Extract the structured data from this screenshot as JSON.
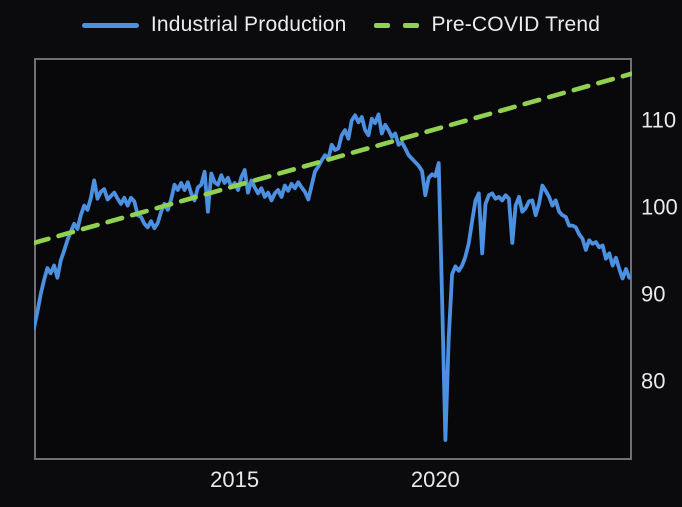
{
  "legend": {
    "industrial_label": "Industrial Production",
    "trend_label": "Pre-COVID Trend"
  },
  "colors": {
    "background": "#0b0b0e",
    "plot_background": "#08080b",
    "plot_border": "#6f6f75",
    "industrial_line": "#4c90e2",
    "trend_line": "#90d152",
    "text": "#e9e9eb"
  },
  "chart_data": {
    "type": "line",
    "title": "",
    "xlabel": "",
    "ylabel": "",
    "grid": false,
    "legend_position": "top-center",
    "xlim": [
      2010.0,
      2024.9
    ],
    "ylim": [
      71.0,
      117.3
    ],
    "xticks": [
      {
        "value": 2015,
        "label": "2015"
      },
      {
        "value": 2020,
        "label": "2020"
      }
    ],
    "yticks": [
      {
        "value": 110,
        "label": "110"
      },
      {
        "value": 100,
        "label": "100"
      },
      {
        "value": 90,
        "label": "90"
      },
      {
        "value": 80,
        "label": "80"
      }
    ],
    "series": [
      {
        "name": "Industrial Production",
        "color": "#4c90e2",
        "style": "solid",
        "line_width": 3.8,
        "x_start": 2010.0,
        "x_step_per_year": 12,
        "values": [
          86.2,
          88.0,
          90.1,
          91.7,
          93.1,
          92.5,
          93.4,
          92.0,
          94.0,
          95.1,
          96.3,
          97.3,
          98.2,
          97.6,
          99.2,
          100.3,
          99.8,
          101.2,
          103.2,
          101.1,
          101.9,
          102.2,
          101.0,
          101.4,
          101.8,
          101.1,
          100.5,
          101.2,
          100.3,
          101.2,
          100.8,
          99.2,
          99.0,
          98.2,
          97.8,
          98.5,
          97.7,
          98.3,
          99.6,
          100.5,
          99.8,
          101.0,
          102.7,
          102.1,
          102.9,
          102.1,
          103.0,
          101.7,
          100.9,
          102.4,
          102.7,
          104.2,
          99.6,
          104.0,
          103.0,
          102.7,
          103.8,
          102.9,
          103.5,
          102.4,
          102.9,
          102.1,
          103.6,
          104.4,
          101.8,
          103.2,
          102.4,
          101.7,
          102.3,
          101.3,
          101.8,
          100.9,
          101.7,
          102.1,
          101.3,
          102.6,
          102.0,
          102.8,
          102.3,
          103.0,
          102.4,
          101.9,
          101.0,
          102.6,
          104.2,
          104.8,
          105.5,
          106.1,
          105.7,
          107.3,
          106.7,
          106.9,
          108.4,
          109.0,
          108.0,
          110.1,
          110.7,
          109.9,
          110.5,
          109.0,
          108.4,
          110.3,
          109.8,
          110.8,
          108.6,
          109.6,
          109.0,
          108.2,
          108.6,
          107.3,
          107.6,
          106.9,
          106.1,
          105.7,
          105.3,
          104.9,
          104.3,
          101.5,
          103.5,
          103.9,
          103.7,
          105.2,
          90.0,
          73.3,
          85.0,
          92.4,
          93.3,
          92.8,
          93.4,
          94.4,
          96.0,
          98.5,
          100.9,
          101.7,
          94.8,
          100.5,
          101.5,
          101.7,
          101.1,
          101.3,
          100.9,
          101.5,
          101.1,
          96.0,
          100.3,
          101.3,
          99.6,
          100.0,
          100.8,
          100.9,
          99.2,
          100.5,
          102.6,
          102.0,
          101.3,
          100.3,
          100.9,
          99.6,
          99.2,
          99.0,
          98.0,
          98.0,
          97.8,
          97.0,
          96.5,
          95.2,
          96.3,
          95.9,
          96.1,
          95.5,
          95.7,
          94.2,
          94.8,
          93.4,
          94.3,
          93.0,
          91.9,
          93.0,
          92.0
        ]
      },
      {
        "name": "Pre-COVID Trend",
        "color": "#90d152",
        "style": "dashed",
        "line_width": 4.6,
        "dash": [
          15,
          10.5
        ],
        "points": [
          [
            2010.0,
            96.0
          ],
          [
            2024.9,
            115.5
          ]
        ]
      }
    ]
  }
}
